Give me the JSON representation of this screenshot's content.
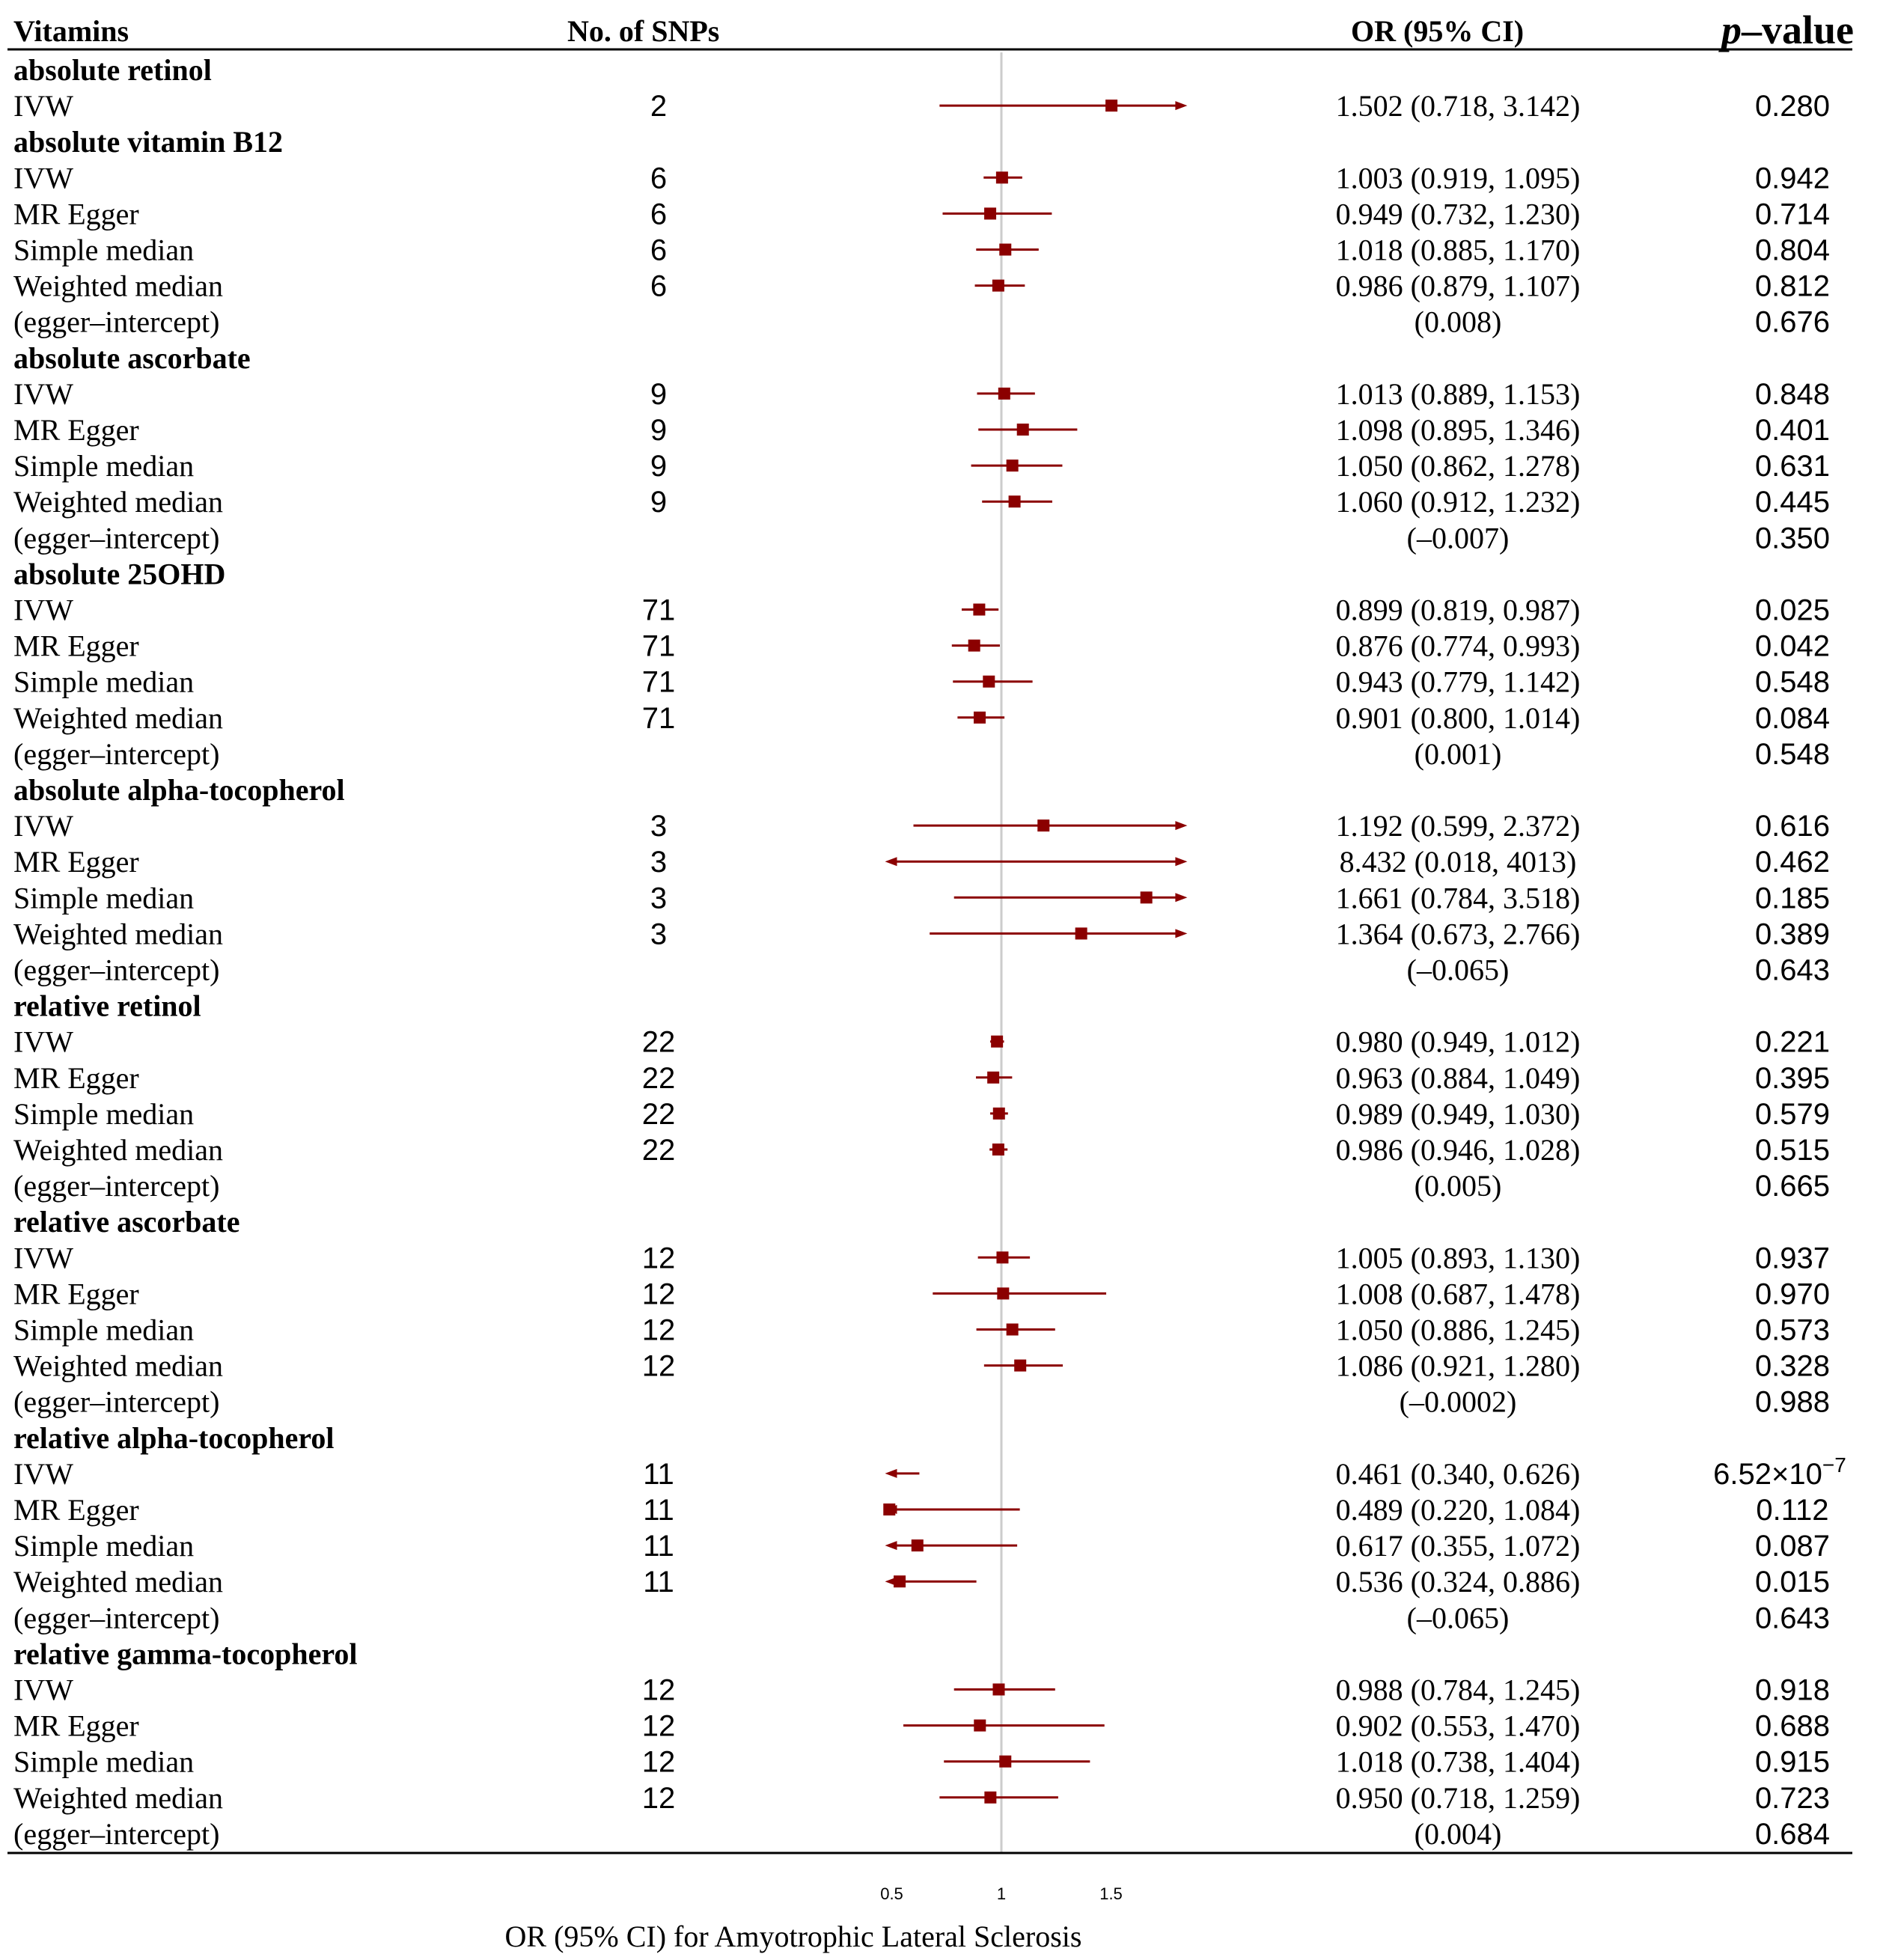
{
  "chart_data": {
    "type": "forest",
    "headers": {
      "vitamins": "Vitamins",
      "snps": "No. of SNPs",
      "or": "OR (95% CI)",
      "p_italic": "p",
      "p_rest": "–value"
    },
    "xlabel": "OR (95% CI) for Amyotrophic Lateral Sclerosis",
    "xticks": [
      {
        "value": 0.5,
        "label": "0.5"
      },
      {
        "value": 1,
        "label": "1"
      },
      {
        "value": 1.5,
        "label": "1.5"
      }
    ],
    "xlim": [
      0.5,
      1.8
    ],
    "reference_line": 1,
    "colors": {
      "marker": "#8b0000",
      "reference": "#cccccc",
      "text": "#000000"
    },
    "groups": [
      {
        "name": "absolute retinol",
        "rows": [
          {
            "method": "IVW",
            "snps": "2",
            "or_text": "1.502 (0.718, 3.142)",
            "p": "0.280",
            "or": 1.502,
            "lo": 0.718,
            "hi": 3.142
          }
        ]
      },
      {
        "name": "absolute vitamin B12",
        "rows": [
          {
            "method": "IVW",
            "snps": "6",
            "or_text": "1.003 (0.919, 1.095)",
            "p": "0.942",
            "or": 1.003,
            "lo": 0.919,
            "hi": 1.095
          },
          {
            "method": "MR Egger",
            "snps": "6",
            "or_text": "0.949 (0.732, 1.230)",
            "p": "0.714",
            "or": 0.949,
            "lo": 0.732,
            "hi": 1.23
          },
          {
            "method": "Simple median",
            "snps": "6",
            "or_text": "1.018 (0.885, 1.170)",
            "p": "0.804",
            "or": 1.018,
            "lo": 0.885,
            "hi": 1.17
          },
          {
            "method": "Weighted median",
            "snps": "6",
            "or_text": "0.986 (0.879, 1.107)",
            "p": "0.812",
            "or": 0.986,
            "lo": 0.879,
            "hi": 1.107
          },
          {
            "method": "(egger–intercept)",
            "snps": "",
            "or_text": "(0.008)",
            "p": "0.676"
          }
        ]
      },
      {
        "name": "absolute ascorbate",
        "rows": [
          {
            "method": "IVW",
            "snps": "9",
            "or_text": "1.013 (0.889, 1.153)",
            "p": "0.848",
            "or": 1.013,
            "lo": 0.889,
            "hi": 1.153
          },
          {
            "method": "MR Egger",
            "snps": "9",
            "or_text": "1.098 (0.895, 1.346)",
            "p": "0.401",
            "or": 1.098,
            "lo": 0.895,
            "hi": 1.346
          },
          {
            "method": "Simple median",
            "snps": "9",
            "or_text": "1.050 (0.862, 1.278)",
            "p": "0.631",
            "or": 1.05,
            "lo": 0.862,
            "hi": 1.278
          },
          {
            "method": "Weighted median",
            "snps": "9",
            "or_text": "1.060 (0.912, 1.232)",
            "p": "0.445",
            "or": 1.06,
            "lo": 0.912,
            "hi": 1.232
          },
          {
            "method": "(egger–intercept)",
            "snps": "",
            "or_text": "(–0.007)",
            "p": "0.350"
          }
        ]
      },
      {
        "name": "absolute 25OHD",
        "rows": [
          {
            "method": "IVW",
            "snps": "71",
            "or_text": "0.899 (0.819, 0.987)",
            "p": "0.025",
            "or": 0.899,
            "lo": 0.819,
            "hi": 0.987
          },
          {
            "method": "MR Egger",
            "snps": "71",
            "or_text": "0.876 (0.774, 0.993)",
            "p": "0.042",
            "or": 0.876,
            "lo": 0.774,
            "hi": 0.993
          },
          {
            "method": "Simple median",
            "snps": "71",
            "or_text": "0.943 (0.779, 1.142)",
            "p": "0.548",
            "or": 0.943,
            "lo": 0.779,
            "hi": 1.142
          },
          {
            "method": "Weighted median",
            "snps": "71",
            "or_text": "0.901 (0.800, 1.014)",
            "p": "0.084",
            "or": 0.901,
            "lo": 0.8,
            "hi": 1.014
          },
          {
            "method": "(egger–intercept)",
            "snps": "",
            "or_text": "(0.001)",
            "p": "0.548"
          }
        ]
      },
      {
        "name": "absolute alpha-tocopherol",
        "rows": [
          {
            "method": "IVW",
            "snps": "3",
            "or_text": "1.192 (0.599, 2.372)",
            "p": "0.616",
            "or": 1.192,
            "lo": 0.599,
            "hi": 2.372
          },
          {
            "method": "MR Egger",
            "snps": "3",
            "or_text": "8.432 (0.018, 4013)",
            "p": "0.462",
            "or": 8.432,
            "lo": 0.018,
            "hi": 4013
          },
          {
            "method": "Simple median",
            "snps": "3",
            "or_text": "1.661 (0.784, 3.518)",
            "p": "0.185",
            "or": 1.661,
            "lo": 0.784,
            "hi": 3.518
          },
          {
            "method": "Weighted median",
            "snps": "3",
            "or_text": "1.364 (0.673, 2.766)",
            "p": "0.389",
            "or": 1.364,
            "lo": 0.673,
            "hi": 2.766
          },
          {
            "method": "(egger–intercept)",
            "snps": "",
            "or_text": "(–0.065)",
            "p": "0.643"
          }
        ]
      },
      {
        "name": "relative retinol",
        "rows": [
          {
            "method": "IVW",
            "snps": "22",
            "or_text": "0.980 (0.949, 1.012)",
            "p": "0.221",
            "or": 0.98,
            "lo": 0.949,
            "hi": 1.012
          },
          {
            "method": "MR Egger",
            "snps": "22",
            "or_text": "0.963 (0.884, 1.049)",
            "p": "0.395",
            "or": 0.963,
            "lo": 0.884,
            "hi": 1.049
          },
          {
            "method": "Simple median",
            "snps": "22",
            "or_text": "0.989 (0.949, 1.030)",
            "p": "0.579",
            "or": 0.989,
            "lo": 0.949,
            "hi": 1.03
          },
          {
            "method": "Weighted median",
            "snps": "22",
            "or_text": "0.986 (0.946, 1.028)",
            "p": "0.515",
            "or": 0.986,
            "lo": 0.946,
            "hi": 1.028
          },
          {
            "method": "(egger–intercept)",
            "snps": "",
            "or_text": "(0.005)",
            "p": "0.665"
          }
        ]
      },
      {
        "name": "relative ascorbate",
        "rows": [
          {
            "method": "IVW",
            "snps": "12",
            "or_text": "1.005 (0.893, 1.130)",
            "p": "0.937",
            "or": 1.005,
            "lo": 0.893,
            "hi": 1.13
          },
          {
            "method": "MR Egger",
            "snps": "12",
            "or_text": "1.008 (0.687, 1.478)",
            "p": "0.970",
            "or": 1.008,
            "lo": 0.687,
            "hi": 1.478
          },
          {
            "method": "Simple median",
            "snps": "12",
            "or_text": "1.050 (0.886, 1.245)",
            "p": "0.573",
            "or": 1.05,
            "lo": 0.886,
            "hi": 1.245
          },
          {
            "method": "Weighted median",
            "snps": "12",
            "or_text": "1.086 (0.921, 1.280)",
            "p": "0.328",
            "or": 1.086,
            "lo": 0.921,
            "hi": 1.28
          },
          {
            "method": "(egger–intercept)",
            "snps": "",
            "or_text": "(–0.0002)",
            "p": "0.988"
          }
        ]
      },
      {
        "name": "relative alpha-tocopherol",
        "rows": [
          {
            "method": "IVW",
            "snps": "11",
            "or_text": "0.461 (0.340, 0.626)",
            "p": "6.52×10",
            "p_exp": "−7",
            "or": 0.461,
            "lo": 0.34,
            "hi": 0.626
          },
          {
            "method": "MR Egger",
            "snps": "11",
            "or_text": "0.489 (0.220, 1.084)",
            "p": "0.112",
            "or": 0.489,
            "lo": 0.22,
            "hi": 1.084
          },
          {
            "method": "Simple median",
            "snps": "11",
            "or_text": "0.617 (0.355, 1.072)",
            "p": "0.087",
            "or": 0.617,
            "lo": 0.355,
            "hi": 1.072
          },
          {
            "method": "Weighted median",
            "snps": "11",
            "or_text": "0.536 (0.324, 0.886)",
            "p": "0.015",
            "or": 0.536,
            "lo": 0.324,
            "hi": 0.886
          },
          {
            "method": "(egger–intercept)",
            "snps": "",
            "or_text": "(–0.065)",
            "p": "0.643"
          }
        ]
      },
      {
        "name": "relative gamma-tocopherol",
        "rows": [
          {
            "method": "IVW",
            "snps": "12",
            "or_text": "0.988 (0.784, 1.245)",
            "p": "0.918",
            "or": 0.988,
            "lo": 0.784,
            "hi": 1.245
          },
          {
            "method": "MR Egger",
            "snps": "12",
            "or_text": "0.902 (0.553, 1.470)",
            "p": "0.688",
            "or": 0.902,
            "lo": 0.553,
            "hi": 1.47
          },
          {
            "method": "Simple median",
            "snps": "12",
            "or_text": "1.018 (0.738, 1.404)",
            "p": "0.915",
            "or": 1.018,
            "lo": 0.738,
            "hi": 1.404
          },
          {
            "method": "Weighted median",
            "snps": "12",
            "or_text": "0.950 (0.718, 1.259)",
            "p": "0.723",
            "or": 0.95,
            "lo": 0.718,
            "hi": 1.259
          },
          {
            "method": "(egger–intercept)",
            "snps": "",
            "or_text": "(0.004)",
            "p": "0.684"
          }
        ]
      }
    ]
  }
}
